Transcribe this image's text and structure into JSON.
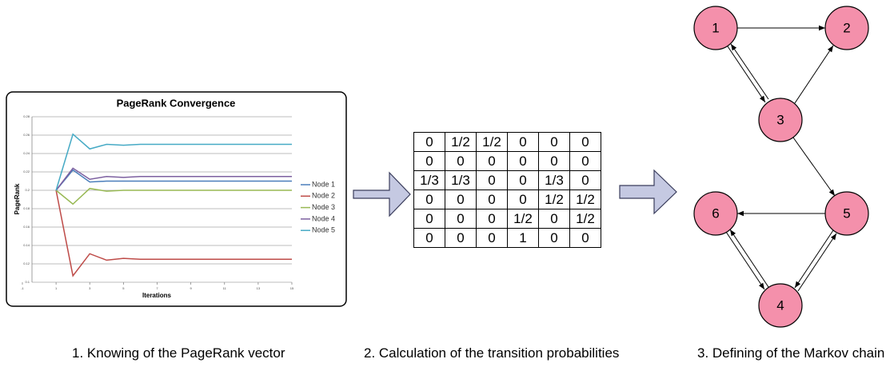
{
  "chart_data": {
    "type": "line",
    "title": "PageRank Convergence",
    "x_label": "Iterations",
    "y_label": "PageRank",
    "x": [
      1,
      2,
      3,
      4,
      5,
      6,
      7,
      8,
      9,
      10,
      11,
      12,
      13,
      14,
      15
    ],
    "series": [
      {
        "name": "Node 1",
        "color": "#4a7ebb",
        "values": [
          0.2,
          0.222,
          0.209,
          0.21,
          0.21,
          0.21,
          0.21,
          0.21,
          0.21,
          0.21,
          0.21,
          0.21,
          0.21,
          0.21,
          0.21
        ]
      },
      {
        "name": "Node 2",
        "color": "#be4b48",
        "values": [
          0.2,
          0.107,
          0.131,
          0.124,
          0.126,
          0.125,
          0.125,
          0.125,
          0.125,
          0.125,
          0.125,
          0.125,
          0.125,
          0.125,
          0.125
        ]
      },
      {
        "name": "Node 3",
        "color": "#98b954",
        "values": [
          0.2,
          0.185,
          0.202,
          0.199,
          0.2,
          0.2,
          0.2,
          0.2,
          0.2,
          0.2,
          0.2,
          0.2,
          0.2,
          0.2,
          0.2
        ]
      },
      {
        "name": "Node 4",
        "color": "#7d60a0",
        "values": [
          0.2,
          0.224,
          0.212,
          0.215,
          0.214,
          0.215,
          0.215,
          0.215,
          0.215,
          0.215,
          0.215,
          0.215,
          0.215,
          0.215,
          0.215
        ]
      },
      {
        "name": "Node 5",
        "color": "#46aac5",
        "values": [
          0.2,
          0.261,
          0.245,
          0.25,
          0.249,
          0.25,
          0.25,
          0.25,
          0.25,
          0.25,
          0.25,
          0.25,
          0.25,
          0.25,
          0.25
        ]
      }
    ],
    "xlim": [
      -1,
      15
    ],
    "xticks": [
      -1,
      1,
      3,
      5,
      7,
      9,
      11,
      13,
      15
    ],
    "ylim": [
      0.1,
      0.28
    ],
    "yticks": [
      0.1,
      0.12,
      0.14,
      0.16,
      0.18,
      0.2,
      0.22,
      0.24,
      0.26,
      0.28
    ],
    "grid": true,
    "legend": "right"
  },
  "matrix": [
    [
      "0",
      "1/2",
      "1/2",
      "0",
      "0",
      "0"
    ],
    [
      "0",
      "0",
      "0",
      "0",
      "0",
      "0"
    ],
    [
      "1/3",
      "1/3",
      "0",
      "0",
      "1/3",
      "0"
    ],
    [
      "0",
      "0",
      "0",
      "0",
      "1/2",
      "1/2"
    ],
    [
      "0",
      "0",
      "0",
      "1/2",
      "0",
      "1/2"
    ],
    [
      "0",
      "0",
      "0",
      "1",
      "0",
      "0"
    ]
  ],
  "nodes": [
    {
      "label": "1"
    },
    {
      "label": "2"
    },
    {
      "label": "3"
    },
    {
      "label": "4"
    },
    {
      "label": "5"
    },
    {
      "label": "6"
    }
  ],
  "captions": [
    "1. Knowing of the PageRank vector",
    "2. Calculation of the transition probabilities",
    "3. Defining of the Markov chain"
  ]
}
